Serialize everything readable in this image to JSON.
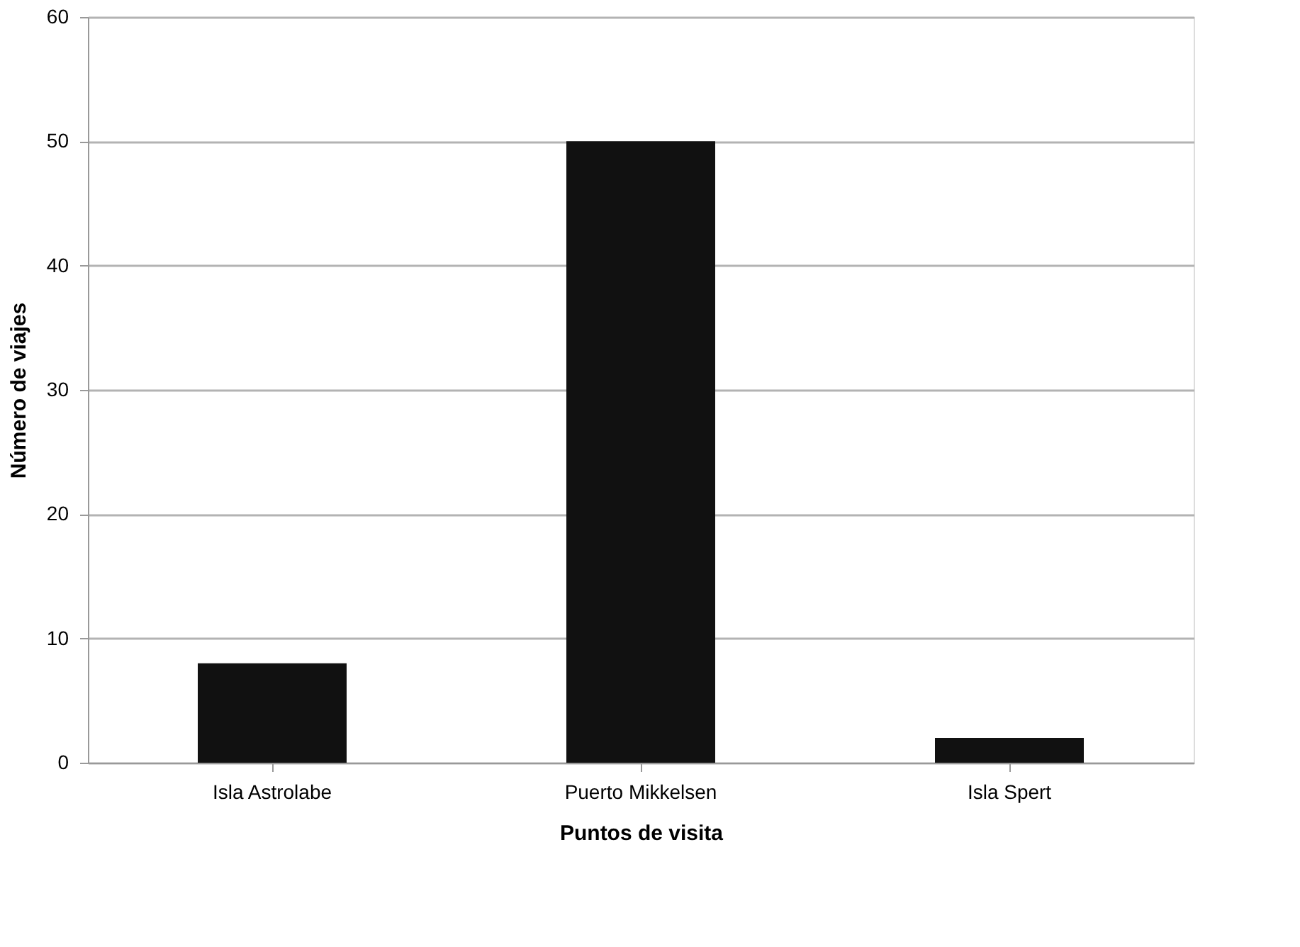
{
  "chart_data": {
    "type": "bar",
    "xlabel": "Puntos de visita",
    "ylabel": "Número de viajes",
    "categories": [
      "Isla Astrolabe",
      "Puerto Mikkelsen",
      "Isla Spert"
    ],
    "values": [
      8,
      50,
      2
    ],
    "color": "#111111",
    "ylim": [
      0,
      60
    ],
    "yticks": [
      0,
      10,
      20,
      30,
      40,
      50,
      60
    ],
    "grid": "y"
  }
}
